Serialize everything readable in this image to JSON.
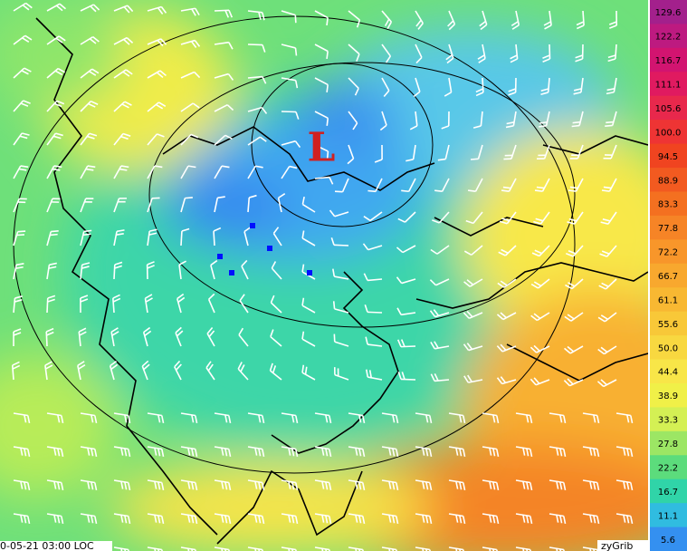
{
  "map": {
    "low_label": "L",
    "timestamp": "0-05-21 03:00 LOC",
    "credit": "zyGrib"
  },
  "legend": {
    "entries": [
      {
        "label": "129.6",
        "color": "#a3208c"
      },
      {
        "label": "122.2",
        "color": "#bd1a80"
      },
      {
        "label": "116.7",
        "color": "#d21470"
      },
      {
        "label": "111.1",
        "color": "#e01a60"
      },
      {
        "label": "105.6",
        "color": "#e8284c"
      },
      {
        "label": "100.0",
        "color": "#ee3434"
      },
      {
        "label": "94.5",
        "color": "#f04420"
      },
      {
        "label": "88.9",
        "color": "#f25a20"
      },
      {
        "label": "83.3",
        "color": "#f47020"
      },
      {
        "label": "77.8",
        "color": "#f68426"
      },
      {
        "label": "72.2",
        "color": "#f8962a"
      },
      {
        "label": "66.7",
        "color": "#f8a82e"
      },
      {
        "label": "61.1",
        "color": "#f8b832"
      },
      {
        "label": "55.6",
        "color": "#f8c838"
      },
      {
        "label": "50.0",
        "color": "#f8d840"
      },
      {
        "label": "44.4",
        "color": "#f8e648"
      },
      {
        "label": "38.9",
        "color": "#f0f048"
      },
      {
        "label": "33.3",
        "color": "#d4f054"
      },
      {
        "label": "27.8",
        "color": "#9ce664"
      },
      {
        "label": "22.2",
        "color": "#5cdc7c"
      },
      {
        "label": "16.7",
        "color": "#30d4a8"
      },
      {
        "label": "11.1",
        "color": "#30bce0"
      },
      {
        "label": "5.6",
        "color": "#3490f0"
      }
    ]
  }
}
